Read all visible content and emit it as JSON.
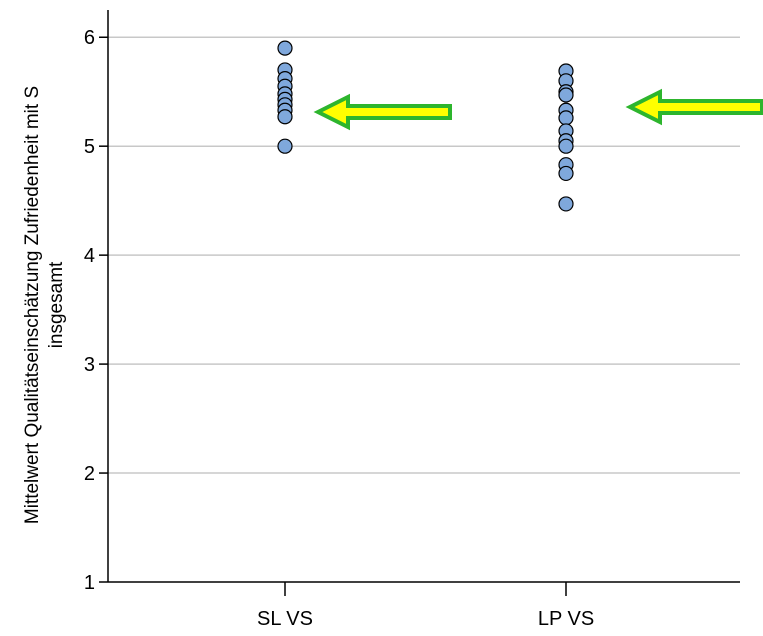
{
  "chart_data": {
    "type": "scatter",
    "title": "",
    "xlabel": "",
    "ylabel": "Mittelwert Qualitätseinschätzung Zufriedenheit mit S",
    "ylabel_line2": "insgesamt",
    "categories": [
      "SL VS",
      "LP VS"
    ],
    "y_ticks": [
      "1",
      "2",
      "3",
      "4",
      "5",
      "6"
    ],
    "ylim": [
      1,
      6.25
    ],
    "grid": "horizontal",
    "series": [
      {
        "category": "SL VS",
        "values": [
          5.9,
          5.7,
          5.62,
          5.55,
          5.48,
          5.43,
          5.38,
          5.33,
          5.27,
          5.0
        ]
      },
      {
        "category": "LP VS",
        "values": [
          5.69,
          5.6,
          5.5,
          5.47,
          5.33,
          5.26,
          5.14,
          5.05,
          5.0,
          4.83,
          4.75,
          4.47
        ]
      }
    ],
    "point_color": "#7fa8dc",
    "point_stroke": "#000000",
    "annotations": [
      {
        "type": "arrow",
        "points_to": "SL VS",
        "fill": "#ffff00",
        "stroke": "#2db52d"
      },
      {
        "type": "arrow",
        "points_to": "LP VS",
        "fill": "#ffff00",
        "stroke": "#2db52d"
      }
    ]
  }
}
